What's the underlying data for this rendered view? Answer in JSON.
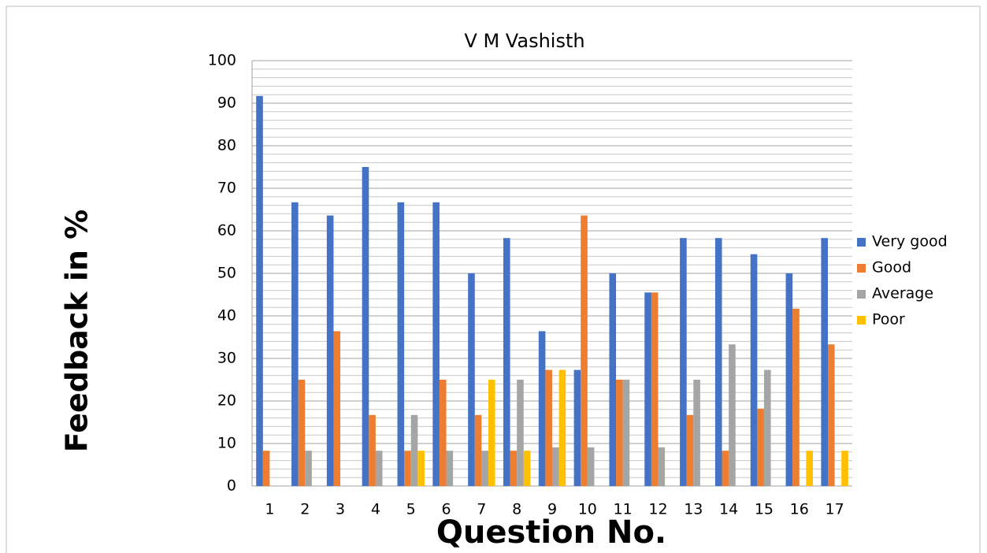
{
  "chart_data": {
    "type": "bar",
    "title": "V M Vashisth",
    "xlabel": "Question No.",
    "ylabel": "Feedback in %",
    "categories": [
      "1",
      "2",
      "3",
      "4",
      "5",
      "6",
      "7",
      "8",
      "9",
      "10",
      "11",
      "12",
      "13",
      "14",
      "15",
      "16",
      "17"
    ],
    "series": [
      {
        "name": "Very good",
        "color": "#4472c4",
        "values": [
          91.7,
          66.7,
          63.6,
          75,
          66.7,
          66.7,
          50,
          58.3,
          36.4,
          27.3,
          50,
          45.5,
          58.3,
          58.3,
          54.5,
          50,
          58.3
        ]
      },
      {
        "name": "Good",
        "color": "#ed7d31",
        "values": [
          8.3,
          25,
          36.4,
          16.7,
          8.3,
          25,
          16.7,
          8.3,
          27.3,
          63.6,
          25,
          45.5,
          16.7,
          8.3,
          18.2,
          41.7,
          33.3
        ]
      },
      {
        "name": "Average",
        "color": "#a5a5a5",
        "values": [
          0,
          8.3,
          0,
          8.3,
          16.7,
          8.3,
          8.3,
          25,
          9.1,
          9.1,
          25,
          9.1,
          25,
          33.3,
          27.3,
          0,
          0
        ]
      },
      {
        "name": "Poor",
        "color": "#ffc000",
        "values": [
          0,
          0,
          0,
          0,
          8.3,
          0,
          25,
          8.3,
          27.3,
          0,
          0,
          0,
          0,
          0,
          0,
          8.3,
          8.3
        ]
      }
    ],
    "ylim": [
      0,
      100
    ],
    "yticks": [
      0,
      10,
      20,
      30,
      40,
      50,
      60,
      70,
      80,
      90,
      100
    ],
    "yminorticks": [
      2,
      4,
      6,
      8,
      12,
      14,
      16,
      18,
      22,
      24,
      26,
      28,
      32,
      34,
      36,
      38,
      42,
      44,
      46,
      48,
      52,
      54,
      56,
      58,
      62,
      64,
      66,
      68,
      72,
      74,
      76,
      78,
      82,
      84,
      86,
      88,
      92,
      94,
      96,
      98
    ],
    "grid": true,
    "legend": "right"
  }
}
